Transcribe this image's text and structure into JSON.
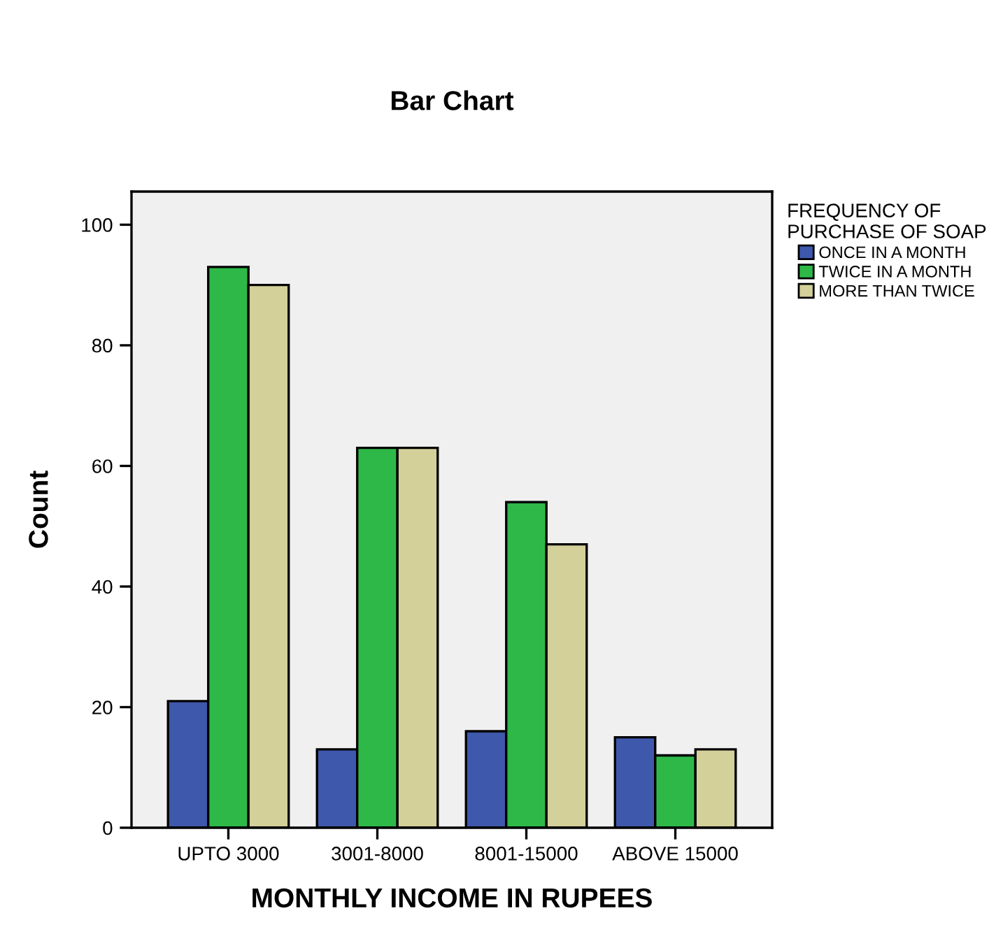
{
  "chart_data": {
    "type": "bar",
    "title": "Bar Chart",
    "xlabel": "MONTHLY INCOME IN RUPEES",
    "ylabel": "Count",
    "legend_title": "FREQUENCY OF\nPURCHASE OF SOAP",
    "categories": [
      "UPTO 3000",
      "3001-8000",
      "8001-15000",
      "ABOVE 15000"
    ],
    "series": [
      {
        "name": "ONCE IN A MONTH",
        "color": "#3e58ac",
        "values": [
          21,
          13,
          16,
          15
        ]
      },
      {
        "name": "TWICE IN A MONTH",
        "color": "#2eb848",
        "values": [
          93,
          63,
          54,
          12
        ]
      },
      {
        "name": "MORE THAN TWICE",
        "color": "#d4d09a",
        "values": [
          90,
          63,
          47,
          13
        ]
      }
    ],
    "ylim": [
      0,
      105.5
    ],
    "yticks": [
      0,
      20,
      40,
      60,
      80,
      100
    ],
    "grid": false,
    "legend": "top right"
  }
}
